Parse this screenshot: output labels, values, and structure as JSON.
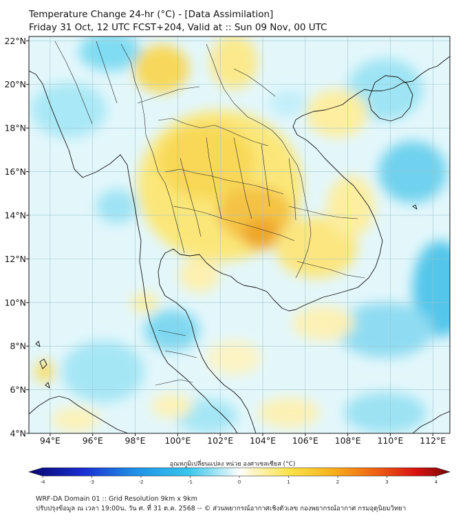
{
  "title": {
    "line1": "Temperature Change 24-hr (°C) - [Data Assimilation]",
    "line2": "Friday 31 Oct, 12 UTC FCST+204, Valid at :: Sun 09 Nov, 00 UTC"
  },
  "map": {
    "lon_range": [
      93,
      112.8
    ],
    "lat_range": [
      4,
      22.2
    ],
    "lon_ticks": [
      "94°E",
      "96°E",
      "98°E",
      "100°E",
      "102°E",
      "104°E",
      "106°E",
      "108°E",
      "110°E",
      "112°E"
    ],
    "lon_tick_values": [
      94,
      96,
      98,
      100,
      102,
      104,
      106,
      108,
      110,
      112
    ],
    "lat_ticks": [
      "22°N",
      "20°N",
      "18°N",
      "16°N",
      "14°N",
      "12°N",
      "10°N",
      "8°N",
      "6°N",
      "4°N"
    ],
    "lat_tick_values": [
      22,
      20,
      18,
      16,
      14,
      12,
      10,
      8,
      6,
      4
    ],
    "grid": true,
    "colors": {
      "background": "#e3f7fb",
      "coast": "#111111",
      "gridline": "#9ec3cc"
    }
  },
  "colorbar": {
    "title": "อุณหภูมิเปลี่ยนแปลง หน่วย องศาเซลเซียส (°C)",
    "ticks": [
      "-4",
      "-3",
      "-2",
      "-1",
      "0",
      "1",
      "2",
      "3",
      "4"
    ],
    "tick_values": [
      -4,
      -3,
      -2,
      -1,
      0,
      1,
      2,
      3,
      4
    ],
    "range": [
      -4,
      4
    ]
  },
  "footer": {
    "line1": "WRF-DA Domain 01 :: Grid Resolution 9km x 9km",
    "line2": "ปรับปรุงข้อมูล ณ เวลา 19:00น. วัน ศ. ที่ 31 ต.ค. 2568 -- © ส่วนพยากรณ์อากาศเชิงตัวเลข กองพยากรณ์อากาศ กรมอุตุนิยมวิทยา"
  }
}
